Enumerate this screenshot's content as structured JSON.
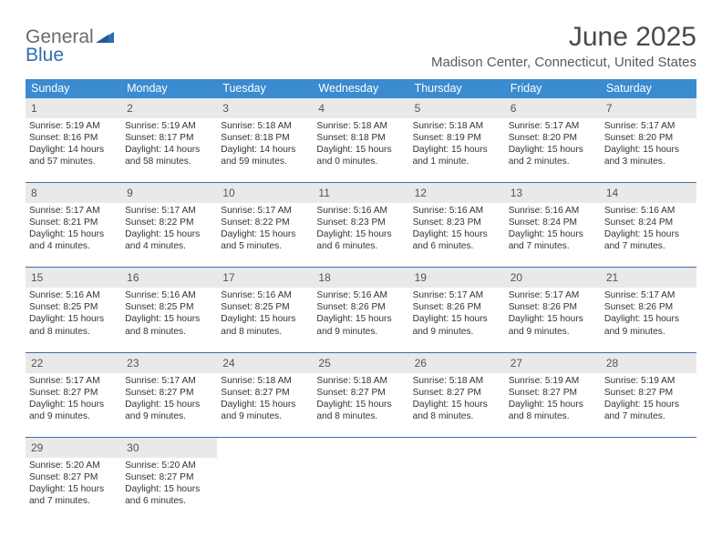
{
  "brand": {
    "general": "General",
    "blue": "Blue"
  },
  "title": "June 2025",
  "subtitle": "Madison Center, Connecticut, United States",
  "colors": {
    "header_bg": "#3a8bd0",
    "header_text": "#ffffff",
    "rule": "#3a6fa8",
    "daynum_bg": "#e9e9e9",
    "text": "#333333",
    "title_color": "#4a4a4a",
    "logo_gray": "#6a6a6a",
    "logo_blue": "#2f6fb0"
  },
  "dow": [
    "Sunday",
    "Monday",
    "Tuesday",
    "Wednesday",
    "Thursday",
    "Friday",
    "Saturday"
  ],
  "weeks": [
    [
      {
        "n": "1",
        "sr": "5:19 AM",
        "ss": "8:16 PM",
        "d": "14 hours and 57 minutes."
      },
      {
        "n": "2",
        "sr": "5:19 AM",
        "ss": "8:17 PM",
        "d": "14 hours and 58 minutes."
      },
      {
        "n": "3",
        "sr": "5:18 AM",
        "ss": "8:18 PM",
        "d": "14 hours and 59 minutes."
      },
      {
        "n": "4",
        "sr": "5:18 AM",
        "ss": "8:18 PM",
        "d": "15 hours and 0 minutes."
      },
      {
        "n": "5",
        "sr": "5:18 AM",
        "ss": "8:19 PM",
        "d": "15 hours and 1 minute."
      },
      {
        "n": "6",
        "sr": "5:17 AM",
        "ss": "8:20 PM",
        "d": "15 hours and 2 minutes."
      },
      {
        "n": "7",
        "sr": "5:17 AM",
        "ss": "8:20 PM",
        "d": "15 hours and 3 minutes."
      }
    ],
    [
      {
        "n": "8",
        "sr": "5:17 AM",
        "ss": "8:21 PM",
        "d": "15 hours and 4 minutes."
      },
      {
        "n": "9",
        "sr": "5:17 AM",
        "ss": "8:22 PM",
        "d": "15 hours and 4 minutes."
      },
      {
        "n": "10",
        "sr": "5:17 AM",
        "ss": "8:22 PM",
        "d": "15 hours and 5 minutes."
      },
      {
        "n": "11",
        "sr": "5:16 AM",
        "ss": "8:23 PM",
        "d": "15 hours and 6 minutes."
      },
      {
        "n": "12",
        "sr": "5:16 AM",
        "ss": "8:23 PM",
        "d": "15 hours and 6 minutes."
      },
      {
        "n": "13",
        "sr": "5:16 AM",
        "ss": "8:24 PM",
        "d": "15 hours and 7 minutes."
      },
      {
        "n": "14",
        "sr": "5:16 AM",
        "ss": "8:24 PM",
        "d": "15 hours and 7 minutes."
      }
    ],
    [
      {
        "n": "15",
        "sr": "5:16 AM",
        "ss": "8:25 PM",
        "d": "15 hours and 8 minutes."
      },
      {
        "n": "16",
        "sr": "5:16 AM",
        "ss": "8:25 PM",
        "d": "15 hours and 8 minutes."
      },
      {
        "n": "17",
        "sr": "5:16 AM",
        "ss": "8:25 PM",
        "d": "15 hours and 8 minutes."
      },
      {
        "n": "18",
        "sr": "5:16 AM",
        "ss": "8:26 PM",
        "d": "15 hours and 9 minutes."
      },
      {
        "n": "19",
        "sr": "5:17 AM",
        "ss": "8:26 PM",
        "d": "15 hours and 9 minutes."
      },
      {
        "n": "20",
        "sr": "5:17 AM",
        "ss": "8:26 PM",
        "d": "15 hours and 9 minutes."
      },
      {
        "n": "21",
        "sr": "5:17 AM",
        "ss": "8:26 PM",
        "d": "15 hours and 9 minutes."
      }
    ],
    [
      {
        "n": "22",
        "sr": "5:17 AM",
        "ss": "8:27 PM",
        "d": "15 hours and 9 minutes."
      },
      {
        "n": "23",
        "sr": "5:17 AM",
        "ss": "8:27 PM",
        "d": "15 hours and 9 minutes."
      },
      {
        "n": "24",
        "sr": "5:18 AM",
        "ss": "8:27 PM",
        "d": "15 hours and 9 minutes."
      },
      {
        "n": "25",
        "sr": "5:18 AM",
        "ss": "8:27 PM",
        "d": "15 hours and 8 minutes."
      },
      {
        "n": "26",
        "sr": "5:18 AM",
        "ss": "8:27 PM",
        "d": "15 hours and 8 minutes."
      },
      {
        "n": "27",
        "sr": "5:19 AM",
        "ss": "8:27 PM",
        "d": "15 hours and 8 minutes."
      },
      {
        "n": "28",
        "sr": "5:19 AM",
        "ss": "8:27 PM",
        "d": "15 hours and 7 minutes."
      }
    ],
    [
      {
        "n": "29",
        "sr": "5:20 AM",
        "ss": "8:27 PM",
        "d": "15 hours and 7 minutes."
      },
      {
        "n": "30",
        "sr": "5:20 AM",
        "ss": "8:27 PM",
        "d": "15 hours and 6 minutes."
      },
      null,
      null,
      null,
      null,
      null
    ]
  ],
  "labels": {
    "sunrise": "Sunrise:",
    "sunset": "Sunset:",
    "daylight": "Daylight:"
  }
}
